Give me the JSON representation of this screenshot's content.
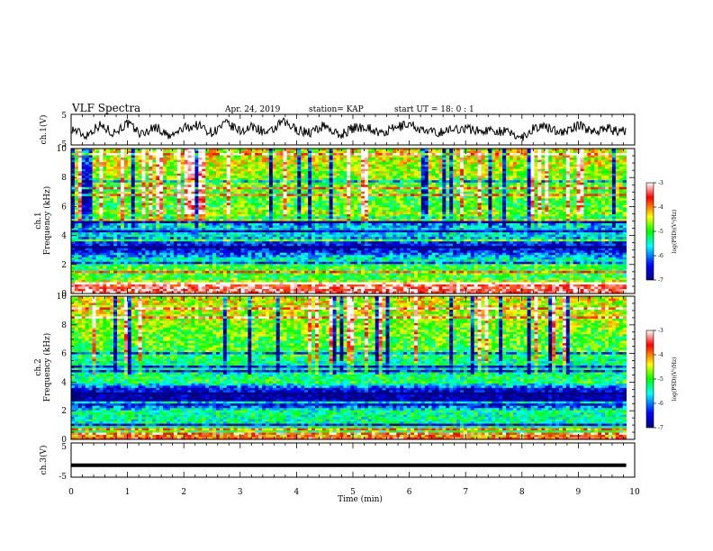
{
  "header": {
    "title": "VLF Spectra",
    "date": "Apr. 24, 2019",
    "station": "station= KAP",
    "start": "start  UT =   18: 0   : 1"
  },
  "chart_data": [
    {
      "type": "line",
      "panel": "ch1",
      "ylabel": "ch.1(V)",
      "xlim": [
        0,
        10
      ],
      "ylim": [
        -5,
        5
      ],
      "yticks": [
        "5",
        "-5"
      ],
      "x": [
        0,
        0.25,
        0.5,
        0.75,
        1,
        1.25,
        1.5,
        1.75,
        2,
        2.25,
        2.5,
        2.75,
        3,
        3.25,
        3.5,
        3.75,
        4,
        4.25,
        4.5,
        4.75,
        5,
        5.25,
        5.5,
        5.75,
        6,
        6.25,
        6.5,
        6.75,
        7,
        7.25,
        7.5,
        7.75,
        8,
        8.25,
        8.5,
        8.75,
        9,
        9.25,
        9.5,
        9.75,
        9.85
      ],
      "y": [
        0.5,
        -2.0,
        1.5,
        -1.0,
        2.0,
        -1.5,
        1.0,
        -2.5,
        0.5,
        1.5,
        -1.0,
        2.0,
        -0.5,
        1.0,
        -1.5,
        2.5,
        0.0,
        -1.0,
        1.5,
        -2.0,
        0.5,
        1.0,
        -1.5,
        0.5,
        2.0,
        -0.5,
        -1.0,
        0.0,
        0.5,
        -0.5,
        0.0,
        -1.0,
        -2.5,
        1.0,
        0.5,
        -1.0,
        1.5,
        -0.5,
        0.5,
        -1.0,
        0.0
      ]
    },
    {
      "type": "heatmap",
      "panel": "ch2",
      "ylabel": "ch.1 Frequency (kHz)",
      "xlim": [
        0,
        10
      ],
      "ylim": [
        0,
        10
      ],
      "yticks": [
        "0",
        "2",
        "4",
        "6",
        "8",
        "10"
      ],
      "colorbar": {
        "label": "log(PSD)(V²/Hz)",
        "range": [
          -7,
          -3
        ],
        "ticks": [
          "-3",
          "-4",
          "-5",
          "-6",
          "-7"
        ]
      },
      "band_level_by_kHz": [
        [
          0.0,
          -3.4
        ],
        [
          0.5,
          -3.3
        ],
        [
          1.0,
          -5.0
        ],
        [
          2.0,
          -5.0
        ],
        [
          2.5,
          -5.7
        ],
        [
          3.0,
          -6.6
        ],
        [
          3.5,
          -6.4
        ],
        [
          4.0,
          -5.6
        ],
        [
          4.5,
          -5.7
        ],
        [
          5.0,
          -6.0
        ],
        [
          5.5,
          -4.5
        ],
        [
          6.0,
          -5.0
        ],
        [
          7.0,
          -4.9
        ],
        [
          8.0,
          -4.7
        ],
        [
          9.0,
          -4.5
        ],
        [
          10.0,
          -4.4
        ]
      ]
    },
    {
      "type": "heatmap",
      "panel": "ch3",
      "ylabel": "ch.2 Frequency (kHz)",
      "xlim": [
        0,
        10
      ],
      "ylim": [
        0,
        10
      ],
      "yticks": [
        "0",
        "2",
        "4",
        "6",
        "8",
        "10"
      ],
      "colorbar": {
        "label": "log(PSD)(V²/Hz)",
        "range": [
          -7,
          -3
        ],
        "ticks": [
          "-3",
          "-4",
          "-5",
          "-6",
          "-7"
        ]
      },
      "band_level_by_kHz": [
        [
          0.0,
          -3.4
        ],
        [
          0.5,
          -5.0
        ],
        [
          1.0,
          -5.4
        ],
        [
          2.0,
          -5.3
        ],
        [
          2.5,
          -6.8
        ],
        [
          3.0,
          -6.9
        ],
        [
          3.5,
          -6.5
        ],
        [
          4.0,
          -5.1
        ],
        [
          4.5,
          -5.3
        ],
        [
          5.0,
          -5.4
        ],
        [
          5.5,
          -5.3
        ],
        [
          6.0,
          -5.0
        ],
        [
          7.0,
          -4.9
        ],
        [
          8.0,
          -4.7
        ],
        [
          9.0,
          -4.5
        ],
        [
          10.0,
          -4.4
        ]
      ]
    },
    {
      "type": "line",
      "panel": "ch4",
      "ylabel": "ch.3(V)",
      "xlim": [
        0,
        10
      ],
      "ylim": [
        -5,
        5
      ],
      "yticks": [
        "5",
        "-5"
      ],
      "x": [
        0,
        9.85
      ],
      "y": [
        -1.5,
        -1.5
      ],
      "xlabel": "Time  (min)",
      "xticks": [
        "0",
        "1",
        "2",
        "3",
        "4",
        "5",
        "6",
        "7",
        "8",
        "9",
        "10"
      ]
    }
  ]
}
